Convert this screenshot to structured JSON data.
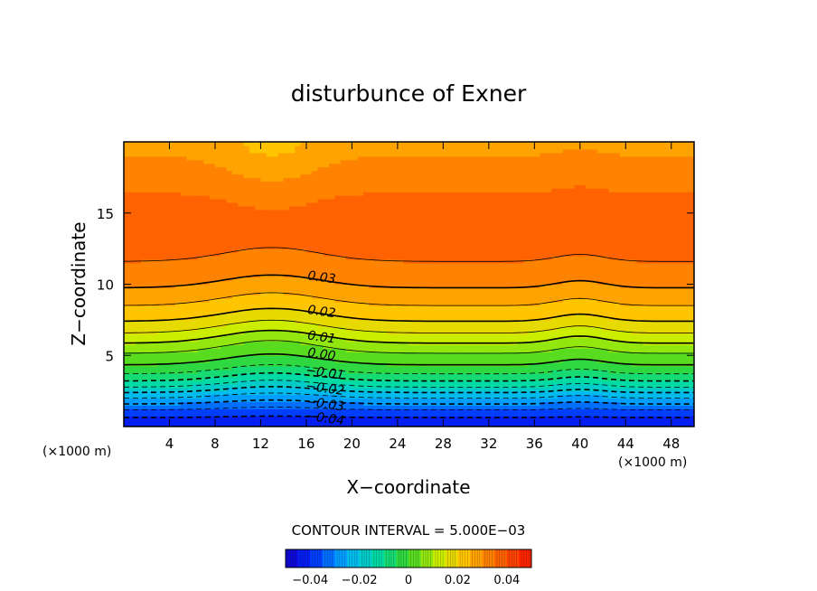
{
  "chart_data": {
    "type": "heatmap",
    "title": "disturbunce of Exner",
    "xlabel": "X−coordinate",
    "ylabel": "Z−coordinate",
    "x_unit_left": "(×1000 m)",
    "x_unit_right": "(×1000 m)",
    "xlim": [
      0,
      50
    ],
    "ylim": [
      0,
      20
    ],
    "xticks": [
      {
        "value": 4,
        "label": "4"
      },
      {
        "value": 8,
        "label": "8"
      },
      {
        "value": 12,
        "label": "12"
      },
      {
        "value": 16,
        "label": "16"
      },
      {
        "value": 20,
        "label": "20"
      },
      {
        "value": 24,
        "label": "24"
      },
      {
        "value": 28,
        "label": "28"
      },
      {
        "value": 32,
        "label": "32"
      },
      {
        "value": 36,
        "label": "36"
      },
      {
        "value": 40,
        "label": "40"
      },
      {
        "value": 44,
        "label": "44"
      },
      {
        "value": 48,
        "label": "48"
      }
    ],
    "yticks": [
      {
        "value": 5,
        "label": "5"
      },
      {
        "value": 10,
        "label": "10"
      },
      {
        "value": 15,
        "label": "15"
      }
    ],
    "contour_interval_text": "CONTOUR INTERVAL = 5.000E−03",
    "contour_labels": [
      {
        "value": 0.03,
        "text": "0.03",
        "x": 17.3,
        "y": 10.2
      },
      {
        "value": 0.02,
        "text": "0.02",
        "x": 17.3,
        "y": 7.8
      },
      {
        "value": 0.01,
        "text": "0.01",
        "x": 17.3,
        "y": 6.0
      },
      {
        "value": 0.0,
        "text": "0.00",
        "x": 17.3,
        "y": 4.8
      },
      {
        "value": -0.01,
        "text": "−0.01",
        "x": 17.6,
        "y": 3.5
      },
      {
        "value": -0.02,
        "text": "−0.02",
        "x": 17.6,
        "y": 2.4
      },
      {
        "value": -0.03,
        "text": "−0.03",
        "x": 17.6,
        "y": 1.3
      },
      {
        "value": -0.04,
        "text": "−0.04",
        "x": 17.6,
        "y": 0.3
      }
    ],
    "colorbar": {
      "min": -0.05,
      "max": 0.05,
      "ticks": [
        {
          "value": -0.04,
          "label": "−0.04"
        },
        {
          "value": -0.02,
          "label": "−0.02"
        },
        {
          "value": 0,
          "label": "0"
        },
        {
          "value": 0.02,
          "label": "0.02"
        },
        {
          "value": 0.04,
          "label": "0.04"
        }
      ]
    },
    "field": {
      "description_levels": "value vs height z (km) at reference column; modulated by x",
      "profile": [
        [
          0.0,
          -0.045
        ],
        [
          1.0,
          -0.037
        ],
        [
          2.0,
          -0.025
        ],
        [
          3.0,
          -0.012
        ],
        [
          4.0,
          -0.002
        ],
        [
          5.0,
          0.004
        ],
        [
          6.0,
          0.011
        ],
        [
          7.0,
          0.018
        ],
        [
          8.0,
          0.023
        ],
        [
          9.0,
          0.027
        ],
        [
          10.0,
          0.031
        ],
        [
          11.0,
          0.034
        ],
        [
          12.5,
          0.0365
        ],
        [
          14.0,
          0.0375
        ],
        [
          15.5,
          0.0365
        ],
        [
          17.0,
          0.034
        ],
        [
          18.5,
          0.031
        ],
        [
          20.0,
          0.028
        ]
      ]
    }
  }
}
